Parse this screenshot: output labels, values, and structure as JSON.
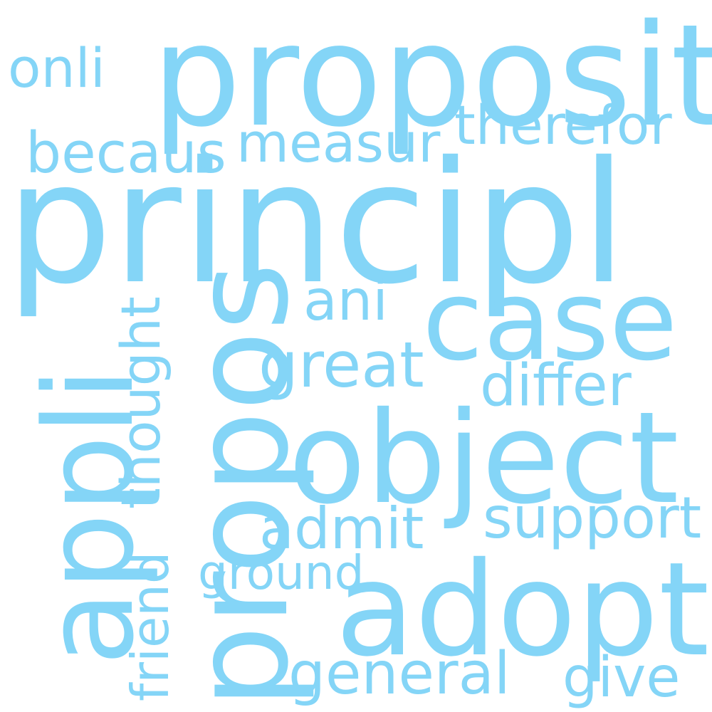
{
  "theme": {
    "background": "#ffffff",
    "word_color": "#84d5f7"
  },
  "words": {
    "proposit": "proposit",
    "principl": "principl",
    "case": "case",
    "object": "object",
    "adopt": "adopt",
    "propos": "propos",
    "appli": "appli",
    "onli": "onli",
    "therefor": "therefor",
    "becaus": "becaus",
    "measur": "measur",
    "ani": "ani",
    "great": "great",
    "differ": "differ",
    "thought": "thought",
    "support": "support",
    "admit": "admit",
    "ground": "ground",
    "friend": "friend",
    "general": "general",
    "give": "give"
  }
}
